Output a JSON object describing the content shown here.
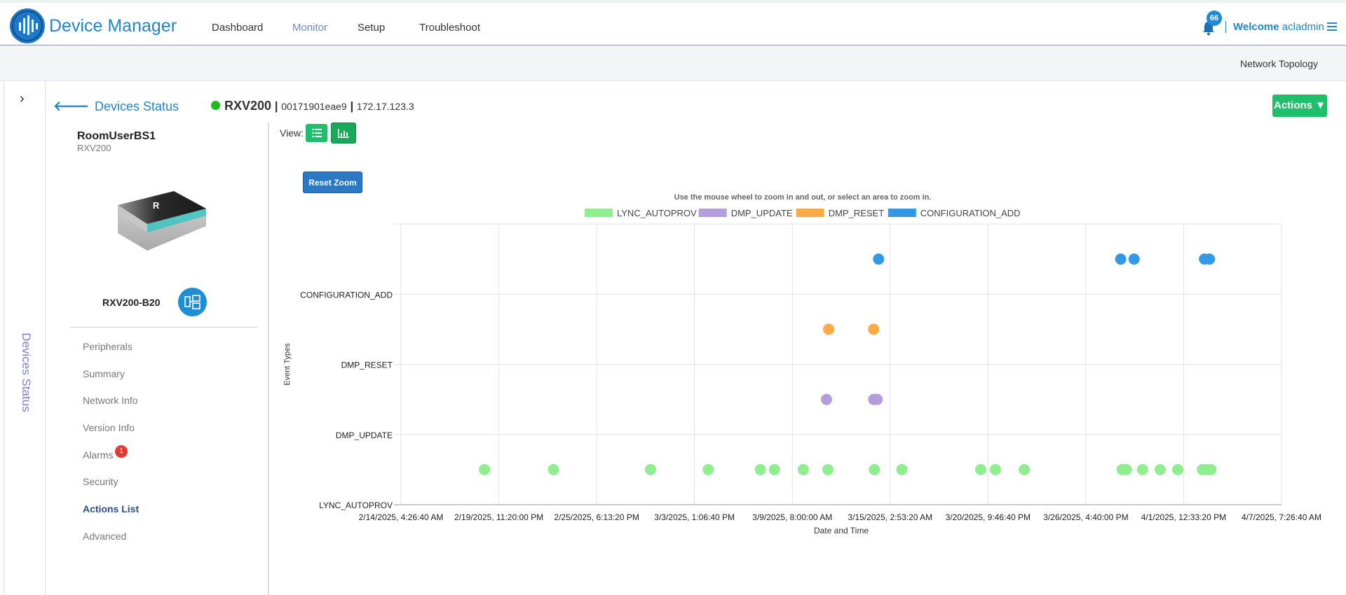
{
  "app": {
    "title": "Device Manager"
  },
  "nav": [
    {
      "label": "Dashboard",
      "active": false
    },
    {
      "label": "Monitor",
      "active": true
    },
    {
      "label": "Setup",
      "active": false
    },
    {
      "label": "Troubleshoot",
      "active": false
    }
  ],
  "notifications": {
    "count": "66"
  },
  "user": {
    "welcome": "Welcome",
    "name": "acladmin"
  },
  "subbar": {
    "link": "Network Topology"
  },
  "rail": {
    "label": "Devices Status"
  },
  "breadcrumb": {
    "back": "Devices Status"
  },
  "device": {
    "name": "RXV200",
    "mac": "00171901eae9",
    "ip": "172.17.123.3",
    "status_color": "#1fba1f",
    "room": "RoomUserBS1",
    "type": "RXV200",
    "model": "RXV200-B20"
  },
  "actions": {
    "label": "Actions ▼"
  },
  "menu": [
    {
      "label": "Peripherals"
    },
    {
      "label": "Summary"
    },
    {
      "label": "Network Info"
    },
    {
      "label": "Version Info"
    },
    {
      "label": "Alarms",
      "badge": "1"
    },
    {
      "label": "Security"
    },
    {
      "label": "Actions List",
      "active": true
    },
    {
      "label": "Advanced"
    }
  ],
  "view": {
    "label": "View:"
  },
  "chart_controls": {
    "reset_zoom": "Reset Zoom",
    "hint": "Use the mouse wheel to zoom in and out, or select an area to zoom in."
  },
  "chart_data": {
    "type": "scatter",
    "xlabel": "Date and Time",
    "ylabel": "Event Types",
    "categories": [
      "LYNC_AUTOPROV",
      "DMP_UPDATE",
      "DMP_RESET",
      "CONFIGURATION_ADD"
    ],
    "x_tick_labels": [
      "2/14/2025, 4:26:40 AM",
      "2/19/2025, 11:20:00 PM",
      "2/25/2025, 6:13:20 PM",
      "3/3/2025, 1:06:40 PM",
      "3/9/2025, 8:00:00 AM",
      "3/15/2025, 2:53:20 AM",
      "3/20/2025, 9:46:40 PM",
      "3/26/2025, 4:40:00 PM",
      "4/1/2025, 12:33:20 PM",
      "4/7/2025, 7:26:40 AM"
    ],
    "xlim": [
      "2/14/2025, 4:26:40 AM",
      "4/7/2025, 7:26:40 AM"
    ],
    "grid": true,
    "legend_position": "top-center",
    "series": [
      {
        "name": "LYNC_AUTOPROV",
        "color": "#90ee90",
        "x": [
          "2/19/2025, 3:00 AM",
          "2/23/2025, 5:00 AM",
          "2/28/2025, 11:00 PM",
          "3/4/2025, 9:00 AM",
          "3/7/2025, 11:00 AM",
          "3/8/2025, 7:00 AM",
          "3/10/2025, 12:00 AM",
          "3/11/2025, 11:00 AM",
          "3/14/2025, 5:00 AM",
          "3/15/2025, 8:00 PM",
          "3/20/2025, 12:00 PM",
          "3/21/2025, 9:00 AM",
          "3/23/2025, 2:00 AM",
          "3/28/2025, 9:00 PM",
          "3/29/2025, 3:00 AM",
          "3/30/2025, 2:00 AM",
          "3/31/2025, 3:00 AM",
          "4/1/2025, 4:00 AM",
          "4/2/2025, 3:00 PM",
          "4/2/2025, 10:00 PM",
          "4/3/2025, 3:00 AM"
        ],
        "y": [
          "LYNC_AUTOPROV",
          "LYNC_AUTOPROV",
          "LYNC_AUTOPROV",
          "LYNC_AUTOPROV",
          "LYNC_AUTOPROV",
          "LYNC_AUTOPROV",
          "LYNC_AUTOPROV",
          "LYNC_AUTOPROV",
          "LYNC_AUTOPROV",
          "LYNC_AUTOPROV",
          "LYNC_AUTOPROV",
          "LYNC_AUTOPROV",
          "LYNC_AUTOPROV",
          "LYNC_AUTOPROV",
          "LYNC_AUTOPROV",
          "LYNC_AUTOPROV",
          "LYNC_AUTOPROV",
          "LYNC_AUTOPROV",
          "LYNC_AUTOPROV",
          "LYNC_AUTOPROV",
          "LYNC_AUTOPROV"
        ]
      },
      {
        "name": "DMP_UPDATE",
        "color": "#b39ddb",
        "x": [
          "3/11/2025, 9:00 AM",
          "3/14/2025, 4:00 AM",
          "3/14/2025, 9:00 AM"
        ],
        "y": [
          "DMP_UPDATE",
          "DMP_UPDATE",
          "DMP_UPDATE"
        ]
      },
      {
        "name": "DMP_RESET",
        "color": "#ffaa44",
        "x": [
          "3/11/2025, 12:00 PM",
          "3/14/2025, 4:00 AM"
        ],
        "y": [
          "DMP_RESET",
          "DMP_RESET"
        ]
      },
      {
        "name": "CONFIGURATION_ADD",
        "color": "#3399e6",
        "x": [
          "3/14/2025, 11:00 AM",
          "3/28/2025, 7:00 PM",
          "3/29/2025, 2:00 PM",
          "4/2/2025, 6:00 PM",
          "4/3/2025, 1:00 AM"
        ],
        "y": [
          "CONFIGURATION_ADD",
          "CONFIGURATION_ADD",
          "CONFIGURATION_ADD",
          "CONFIGURATION_ADD",
          "CONFIGURATION_ADD"
        ]
      }
    ]
  }
}
